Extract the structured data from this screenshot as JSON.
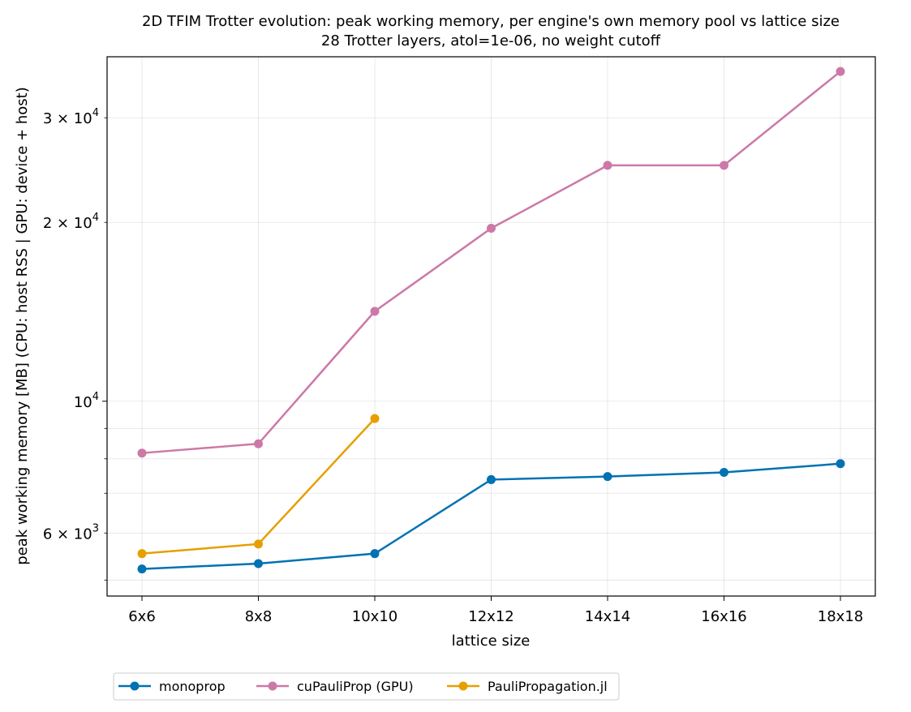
{
  "chart_data": {
    "type": "line",
    "title": "2D TFIM Trotter evolution: peak working memory, per engine's own memory pool vs lattice size",
    "subtitle": "28 Trotter layers, atol=1e-06, no weight cutoff",
    "xlabel": "lattice size",
    "ylabel": "peak working memory [MB]   (CPU: host RSS | GPU: device + host)",
    "categories": [
      "6x6",
      "8x8",
      "10x10",
      "12x12",
      "14x14",
      "16x16",
      "18x18"
    ],
    "y_scale": "log",
    "ylim": [
      4700,
      38000
    ],
    "y_major_ticks": [
      {
        "value": 10000,
        "base": "10",
        "exp": "4"
      }
    ],
    "y_minor_ticks": [
      {
        "value": 5000,
        "label": ""
      },
      {
        "value": 6000,
        "label": "6 × 10",
        "exp": "3"
      },
      {
        "value": 7000,
        "label": ""
      },
      {
        "value": 8000,
        "label": ""
      },
      {
        "value": 9000,
        "label": ""
      },
      {
        "value": 20000,
        "label": "2 × 10",
        "exp": "4"
      },
      {
        "value": 30000,
        "label": "3 × 10",
        "exp": "4"
      }
    ],
    "grid": true,
    "legend_position": "bottom-left, below plot",
    "series": [
      {
        "name": "monoprop",
        "color": "#0072b2",
        "values": [
          5220,
          5330,
          5540,
          7380,
          7470,
          7590,
          7850
        ]
      },
      {
        "name": "cuPauliProp (GPU)",
        "color": "#cc79a7",
        "values": [
          8180,
          8480,
          14170,
          19550,
          24950,
          24950,
          35900
        ]
      },
      {
        "name": "PauliPropagation.jl",
        "color": "#e69f00",
        "values": [
          5540,
          5750,
          9350,
          null,
          null,
          null,
          null
        ]
      }
    ]
  }
}
